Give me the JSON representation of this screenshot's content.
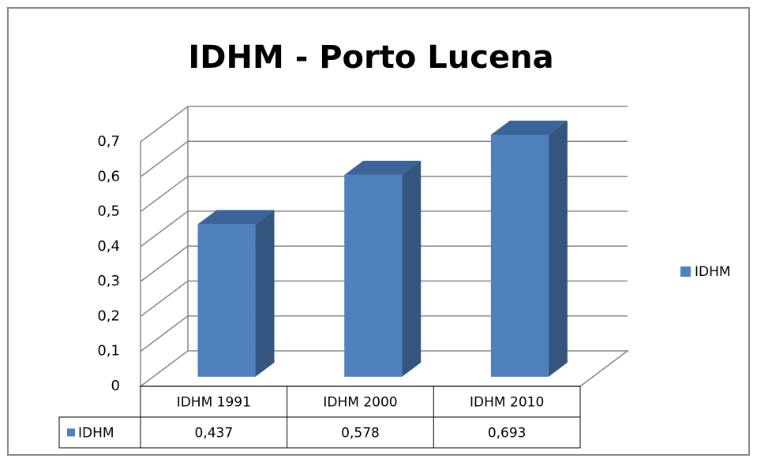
{
  "chart_data": {
    "type": "bar3d",
    "title": "IDHM - Porto Lucena",
    "categories": [
      "IDHM 1991",
      "IDHM 2000",
      "IDHM 2010"
    ],
    "series": [
      {
        "name": "IDHM",
        "color": "#4f81bd",
        "values": [
          0.437,
          0.578,
          0.693
        ],
        "value_labels": [
          "0,437",
          "0,578",
          "0,693"
        ]
      }
    ],
    "ylim": [
      0,
      0.7
    ],
    "yticks": [
      0,
      {
        "value": 0.1,
        "label": "0,1"
      },
      {
        "value": 0.2,
        "label": "0,2"
      },
      {
        "value": 0.3,
        "label": "0,3"
      },
      {
        "value": 0.4,
        "label": "0,4"
      },
      {
        "value": 0.5,
        "label": "0,5"
      },
      {
        "value": 0.6,
        "label": "0,6"
      },
      {
        "value": 0.7,
        "label": "0,7"
      }
    ],
    "grid": true,
    "legend": "right",
    "data_table": true
  }
}
